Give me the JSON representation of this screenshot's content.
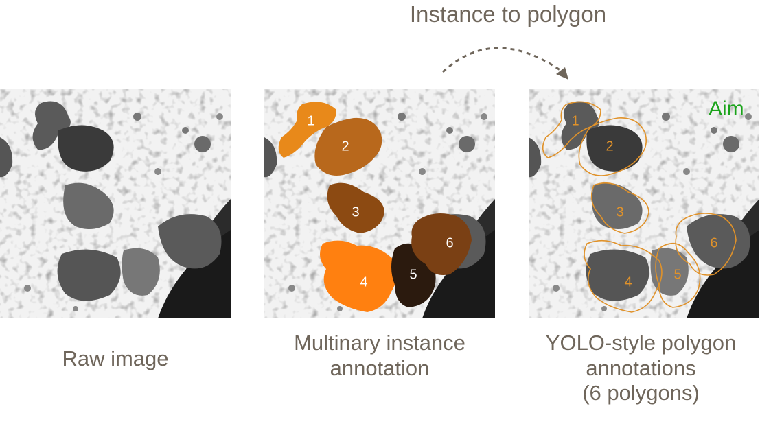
{
  "header": {
    "title": "Instance to polygon"
  },
  "panels": {
    "raw": {
      "caption": "Raw image"
    },
    "instance": {
      "caption_line1": "Multinary instance",
      "caption_line2": "annotation"
    },
    "polygon": {
      "caption_line1": "YOLO-style polygon",
      "caption_line2": "annotations",
      "caption_line3": "(6 polygons)",
      "aim_label": "Aim"
    }
  },
  "instances": [
    {
      "label": "1",
      "color": "#e8891a"
    },
    {
      "label": "2",
      "color": "#b8681c"
    },
    {
      "label": "3",
      "color": "#8c4a12"
    },
    {
      "label": "4",
      "color": "#ff8010"
    },
    {
      "label": "5",
      "color": "#2b1a0e"
    },
    {
      "label": "6",
      "color": "#7a4014"
    }
  ],
  "colors": {
    "text": "#6f665b",
    "outline": "#e0922a",
    "aim": "#1aa31a"
  }
}
